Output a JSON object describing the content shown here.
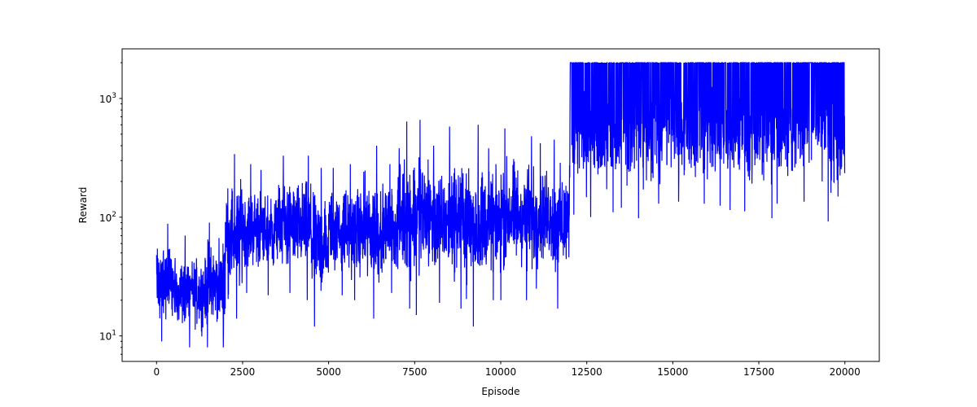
{
  "chart_data": {
    "type": "line",
    "title": "",
    "xlabel": "Episode",
    "ylabel": "Reward",
    "xlim": [
      -1000,
      21000
    ],
    "ylim": [
      6.1,
      2617
    ],
    "yscale": "log",
    "grid": false,
    "legend": "none",
    "series_color": "#0000ff",
    "xticks": [
      {
        "value": 0,
        "label": "0"
      },
      {
        "value": 2500,
        "label": "2500"
      },
      {
        "value": 5000,
        "label": "5000"
      },
      {
        "value": 7500,
        "label": "7500"
      },
      {
        "value": 10000,
        "label": "10000"
      },
      {
        "value": 12500,
        "label": "12500"
      },
      {
        "value": 15000,
        "label": "15000"
      },
      {
        "value": 17500,
        "label": "17500"
      },
      {
        "value": 20000,
        "label": "20000"
      }
    ],
    "yticks": [
      {
        "value": 10,
        "base": "10",
        "exp": "1"
      },
      {
        "value": 100,
        "base": "10",
        "exp": "2"
      },
      {
        "value": 1000,
        "base": "10",
        "exp": "3"
      }
    ],
    "series": [
      {
        "x_range": [
          0,
          20000
        ],
        "envelope_bin_width": 500,
        "envelope": [
          {
            "start": 0,
            "min": 9,
            "max": 88
          },
          {
            "start": 500,
            "min": 8,
            "max": 70
          },
          {
            "start": 1000,
            "min": 8,
            "max": 65
          },
          {
            "start": 1500,
            "min": 8,
            "max": 90
          },
          {
            "start": 2000,
            "min": 14,
            "max": 340
          },
          {
            "start": 2500,
            "min": 23,
            "max": 280
          },
          {
            "start": 3000,
            "min": 22,
            "max": 250
          },
          {
            "start": 3500,
            "min": 23,
            "max": 330
          },
          {
            "start": 4000,
            "min": 20,
            "max": 330
          },
          {
            "start": 4500,
            "min": 12,
            "max": 260
          },
          {
            "start": 5000,
            "min": 22,
            "max": 260
          },
          {
            "start": 5500,
            "min": 20,
            "max": 280
          },
          {
            "start": 6000,
            "min": 14,
            "max": 400
          },
          {
            "start": 6500,
            "min": 23,
            "max": 280
          },
          {
            "start": 7000,
            "min": 17,
            "max": 640
          },
          {
            "start": 7500,
            "min": 15,
            "max": 660
          },
          {
            "start": 8000,
            "min": 19,
            "max": 400
          },
          {
            "start": 8500,
            "min": 17,
            "max": 580
          },
          {
            "start": 9000,
            "min": 12,
            "max": 600
          },
          {
            "start": 9500,
            "min": 20,
            "max": 380
          },
          {
            "start": 10000,
            "min": 20,
            "max": 560
          },
          {
            "start": 10500,
            "min": 20,
            "max": 480
          },
          {
            "start": 11000,
            "min": 25,
            "max": 420
          },
          {
            "start": 11500,
            "min": 17,
            "max": 450
          },
          {
            "start": 12000,
            "min": 105,
            "max": 2000
          },
          {
            "start": 12500,
            "min": 100,
            "max": 2000
          },
          {
            "start": 13000,
            "min": 110,
            "max": 2000
          },
          {
            "start": 13500,
            "min": 120,
            "max": 2000
          },
          {
            "start": 14000,
            "min": 98,
            "max": 2000
          },
          {
            "start": 14500,
            "min": 130,
            "max": 2000
          },
          {
            "start": 15000,
            "min": 135,
            "max": 2000
          },
          {
            "start": 15500,
            "min": 130,
            "max": 2000
          },
          {
            "start": 16000,
            "min": 125,
            "max": 2000
          },
          {
            "start": 16500,
            "min": 115,
            "max": 2000
          },
          {
            "start": 17000,
            "min": 112,
            "max": 2000
          },
          {
            "start": 17500,
            "min": 98,
            "max": 2000
          },
          {
            "start": 18000,
            "min": 130,
            "max": 2000
          },
          {
            "start": 18500,
            "min": 135,
            "max": 2000
          },
          {
            "start": 19000,
            "min": 200,
            "max": 2000
          },
          {
            "start": 19500,
            "min": 92,
            "max": 2000
          }
        ]
      }
    ]
  }
}
